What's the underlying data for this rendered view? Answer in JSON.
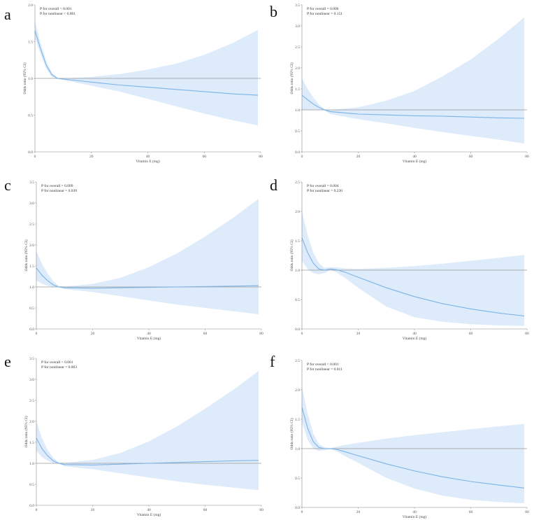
{
  "chart_data": [
    {
      "panel": "a",
      "type": "line",
      "title": "",
      "xlabel": "Vitamin E (mg)",
      "ylabel": "Odds ratio (95% CI)",
      "xlim": [
        0,
        80
      ],
      "ylim": [
        0,
        2.0
      ],
      "xticks": [
        "0",
        "20",
        "40",
        "60",
        "80"
      ],
      "yticks": [
        "0.0",
        "0.5",
        "1.0",
        "1.5",
        "2.0"
      ],
      "annotations": [
        "P for overall < 0.001",
        "P for nonlinear < 0.001"
      ],
      "reference_line": 1.0,
      "series": [
        {
          "name": "Odds ratio",
          "x": [
            0,
            2,
            4,
            6,
            8,
            10,
            20,
            30,
            40,
            50,
            60,
            70,
            79
          ],
          "values": [
            1.65,
            1.4,
            1.18,
            1.05,
            1.0,
            0.99,
            0.95,
            0.91,
            0.88,
            0.85,
            0.82,
            0.79,
            0.77
          ]
        },
        {
          "name": "Lower 95% CI",
          "x": [
            0,
            2,
            4,
            6,
            8,
            10,
            20,
            30,
            40,
            50,
            60,
            70,
            79
          ],
          "values": [
            1.55,
            1.33,
            1.13,
            1.02,
            0.99,
            0.98,
            0.9,
            0.82,
            0.72,
            0.62,
            0.52,
            0.43,
            0.36
          ]
        },
        {
          "name": "Upper 95% CI",
          "x": [
            0,
            2,
            4,
            6,
            8,
            10,
            20,
            30,
            40,
            50,
            60,
            70,
            79
          ],
          "values": [
            1.78,
            1.48,
            1.23,
            1.08,
            1.01,
            1.0,
            1.02,
            1.06,
            1.12,
            1.2,
            1.32,
            1.48,
            1.66
          ]
        }
      ]
    },
    {
      "panel": "b",
      "type": "line",
      "title": "",
      "xlabel": "Vitamin E (mg)",
      "ylabel": "Odds ratio (95% CI)",
      "xlim": [
        0,
        80
      ],
      "ylim": [
        0,
        3.5
      ],
      "xticks": [
        "0",
        "20",
        "40",
        "60",
        "80"
      ],
      "yticks": [
        "0.0",
        "0.5",
        "1.0",
        "1.5",
        "2.0",
        "2.5",
        "3.0",
        "3.5"
      ],
      "annotations": [
        "P for overall = 0.006",
        "P for nonlinear = 0.151"
      ],
      "reference_line": 1.0,
      "series": [
        {
          "name": "Odds ratio",
          "x": [
            0,
            2,
            4,
            6,
            8,
            10,
            20,
            30,
            40,
            50,
            60,
            70,
            79
          ],
          "values": [
            1.35,
            1.24,
            1.14,
            1.06,
            1.0,
            0.96,
            0.9,
            0.88,
            0.86,
            0.85,
            0.83,
            0.81,
            0.8
          ]
        },
        {
          "name": "Lower 95% CI",
          "x": [
            0,
            2,
            4,
            6,
            8,
            10,
            20,
            30,
            40,
            50,
            60,
            70,
            79
          ],
          "values": [
            1.0,
            1.0,
            1.0,
            1.0,
            0.99,
            0.9,
            0.78,
            0.68,
            0.57,
            0.47,
            0.38,
            0.29,
            0.2
          ]
        },
        {
          "name": "Upper 95% CI",
          "x": [
            0,
            2,
            4,
            6,
            8,
            10,
            20,
            30,
            40,
            50,
            60,
            70,
            79
          ],
          "values": [
            1.75,
            1.5,
            1.3,
            1.13,
            1.02,
            1.0,
            1.06,
            1.22,
            1.45,
            1.8,
            2.2,
            2.7,
            3.2
          ]
        }
      ]
    },
    {
      "panel": "c",
      "type": "line",
      "title": "",
      "xlabel": "Vitamin E (mg)",
      "ylabel": "Odds ratio (95% CI)",
      "xlim": [
        0,
        80
      ],
      "ylim": [
        0,
        3.5
      ],
      "xticks": [
        "0",
        "20",
        "40",
        "60",
        "80"
      ],
      "yticks": [
        "0.0",
        "0.5",
        "1.0",
        "1.5",
        "2.0",
        "2.5",
        "3.0",
        "3.5"
      ],
      "annotations": [
        "P for overall = 0.009",
        "P for nonlinear = 0.039"
      ],
      "reference_line": 1.0,
      "series": [
        {
          "name": "Odds ratio",
          "x": [
            0,
            2,
            4,
            6,
            8,
            10,
            20,
            30,
            40,
            50,
            60,
            70,
            79
          ],
          "values": [
            1.45,
            1.28,
            1.15,
            1.05,
            1.0,
            0.98,
            0.97,
            0.98,
            0.99,
            1.0,
            1.01,
            1.02,
            1.03
          ]
        },
        {
          "name": "Lower 95% CI",
          "x": [
            0,
            2,
            4,
            6,
            8,
            10,
            20,
            30,
            40,
            50,
            60,
            70,
            79
          ],
          "values": [
            1.15,
            1.08,
            1.03,
            1.0,
            0.99,
            0.95,
            0.88,
            0.78,
            0.68,
            0.58,
            0.5,
            0.42,
            0.35
          ]
        },
        {
          "name": "Upper 95% CI",
          "x": [
            0,
            2,
            4,
            6,
            8,
            10,
            20,
            30,
            40,
            50,
            60,
            70,
            79
          ],
          "values": [
            1.85,
            1.55,
            1.32,
            1.14,
            1.02,
            1.01,
            1.07,
            1.22,
            1.47,
            1.8,
            2.2,
            2.65,
            3.1
          ]
        }
      ]
    },
    {
      "panel": "d",
      "type": "line",
      "title": "",
      "xlabel": "Vitamin E (mg)",
      "ylabel": "Odds ratio (95% CI)",
      "xlim": [
        0,
        80
      ],
      "ylim": [
        0,
        2.5
      ],
      "xticks": [
        "0",
        "20",
        "40",
        "60",
        "80"
      ],
      "yticks": [
        "0.0",
        "0.5",
        "1.0",
        "1.5",
        "2.0",
        "2.5"
      ],
      "annotations": [
        "P for overall = 0.004",
        "P for nonlinear = 0.230"
      ],
      "reference_line": 1.0,
      "series": [
        {
          "name": "Odds ratio",
          "x": [
            0,
            2,
            4,
            6,
            8,
            10,
            12,
            15,
            20,
            30,
            40,
            50,
            60,
            70,
            79
          ],
          "values": [
            1.55,
            1.3,
            1.12,
            1.02,
            1.0,
            1.02,
            1.01,
            0.97,
            0.88,
            0.7,
            0.55,
            0.43,
            0.34,
            0.27,
            0.22
          ]
        },
        {
          "name": "Lower 95% CI",
          "x": [
            0,
            2,
            4,
            6,
            8,
            10,
            12,
            15,
            20,
            30,
            40,
            50,
            60,
            70,
            79
          ],
          "values": [
            1.15,
            1.02,
            0.95,
            0.93,
            0.95,
            1.0,
            0.97,
            0.88,
            0.7,
            0.38,
            0.2,
            0.12,
            0.08,
            0.06,
            0.05
          ]
        },
        {
          "name": "Upper 95% CI",
          "x": [
            0,
            2,
            4,
            6,
            8,
            10,
            12,
            15,
            20,
            30,
            40,
            50,
            60,
            70,
            79
          ],
          "values": [
            2.0,
            1.6,
            1.3,
            1.12,
            1.04,
            1.05,
            1.05,
            1.03,
            1.02,
            1.04,
            1.07,
            1.11,
            1.16,
            1.21,
            1.26
          ]
        }
      ]
    },
    {
      "panel": "e",
      "type": "line",
      "title": "",
      "xlabel": "Vitamin E (mg)",
      "ylabel": "Odds ratio (95% CI)",
      "xlim": [
        0,
        80
      ],
      "ylim": [
        0,
        3.5
      ],
      "xticks": [
        "0",
        "20",
        "40",
        "60",
        "80"
      ],
      "yticks": [
        "0.0",
        "0.5",
        "1.0",
        "1.5",
        "2.0",
        "2.5",
        "3.0",
        "3.5"
      ],
      "annotations": [
        "P for overall < 0.001",
        "P for nonlinear = 0.003"
      ],
      "reference_line": 1.0,
      "series": [
        {
          "name": "Odds ratio",
          "x": [
            0,
            2,
            4,
            6,
            8,
            10,
            20,
            30,
            40,
            50,
            60,
            70,
            79
          ],
          "values": [
            1.6,
            1.35,
            1.18,
            1.06,
            1.0,
            0.97,
            0.96,
            0.98,
            1.0,
            1.02,
            1.04,
            1.06,
            1.07
          ]
        },
        {
          "name": "Lower 95% CI",
          "x": [
            0,
            2,
            4,
            6,
            8,
            10,
            20,
            30,
            40,
            50,
            60,
            70,
            79
          ],
          "values": [
            1.3,
            1.15,
            1.06,
            1.0,
            0.99,
            0.93,
            0.86,
            0.76,
            0.66,
            0.57,
            0.49,
            0.42,
            0.36
          ]
        },
        {
          "name": "Upper 95% CI",
          "x": [
            0,
            2,
            4,
            6,
            8,
            10,
            20,
            30,
            40,
            50,
            60,
            70,
            79
          ],
          "values": [
            2.0,
            1.6,
            1.32,
            1.13,
            1.02,
            1.01,
            1.08,
            1.25,
            1.52,
            1.88,
            2.3,
            2.75,
            3.2
          ]
        }
      ]
    },
    {
      "panel": "f",
      "type": "line",
      "title": "",
      "xlabel": "Vitamin E (mg)",
      "ylabel": "Odds ratio (95% CI)",
      "xlim": [
        0,
        80
      ],
      "ylim": [
        0,
        2.5
      ],
      "xticks": [
        "0",
        "20",
        "40",
        "60",
        "80"
      ],
      "yticks": [
        "0.0",
        "0.5",
        "1.0",
        "1.5",
        "2.0",
        "2.5"
      ],
      "annotations": [
        "P for overall < 0.001",
        "P for nonlinear = 0.011"
      ],
      "reference_line": 1.0,
      "series": [
        {
          "name": "Odds ratio",
          "x": [
            0,
            2,
            4,
            6,
            8,
            10,
            12,
            15,
            20,
            30,
            40,
            50,
            60,
            70,
            79
          ],
          "values": [
            1.7,
            1.35,
            1.12,
            1.02,
            1.0,
            1.0,
            0.99,
            0.95,
            0.88,
            0.74,
            0.62,
            0.52,
            0.44,
            0.38,
            0.33
          ]
        },
        {
          "name": "Lower 95% CI",
          "x": [
            0,
            2,
            4,
            6,
            8,
            10,
            12,
            15,
            20,
            30,
            40,
            50,
            60,
            70,
            79
          ],
          "values": [
            1.45,
            1.15,
            1.0,
            0.96,
            0.97,
            0.99,
            0.96,
            0.88,
            0.76,
            0.5,
            0.32,
            0.2,
            0.13,
            0.09,
            0.07
          ]
        },
        {
          "name": "Upper 95% CI",
          "x": [
            0,
            2,
            4,
            6,
            8,
            10,
            12,
            15,
            20,
            30,
            40,
            50,
            60,
            70,
            79
          ],
          "values": [
            2.05,
            1.6,
            1.26,
            1.08,
            1.02,
            1.01,
            1.03,
            1.06,
            1.1,
            1.17,
            1.23,
            1.28,
            1.33,
            1.38,
            1.42
          ]
        }
      ]
    }
  ],
  "colors": {
    "line": "#7ab4e8",
    "band": "#deebfb",
    "reference": "#9a9a9a",
    "axis": "#888888"
  }
}
